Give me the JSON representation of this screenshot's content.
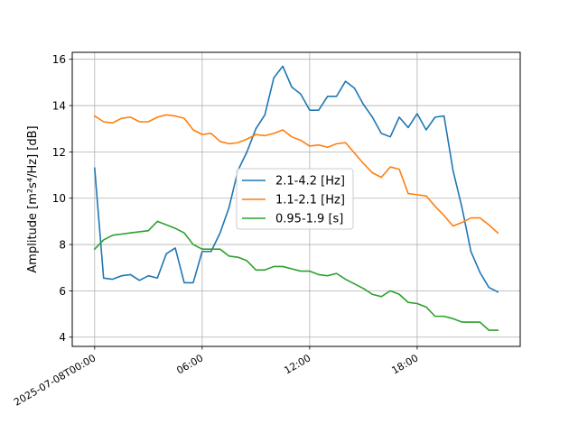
{
  "chart_data": {
    "type": "line",
    "x_start": "2025-07-08T00:00",
    "x_step_minutes": 30,
    "x_ticks": [
      {
        "at": "2025-07-08T00:00",
        "label": "2025-07-08T00:00"
      },
      {
        "at": "2025-07-08T06:00",
        "label": "06:00"
      },
      {
        "at": "2025-07-08T12:00",
        "label": "12:00"
      },
      {
        "at": "2025-07-08T18:00",
        "label": "18:00"
      }
    ],
    "xlim": [
      "2025-07-07T22:45",
      "2025-07-08T23:45"
    ],
    "ylim": [
      3.6,
      16.3
    ],
    "y_ticks": [
      4,
      6,
      8,
      10,
      12,
      14,
      16
    ],
    "ylabel": "Amplitude [m²s⁴/Hz] [dB]",
    "grid": true,
    "legend_position": "center",
    "series": [
      {
        "name": "2.1-4.2 [Hz]",
        "color": "#1f77b4",
        "values": [
          11.3,
          6.55,
          6.5,
          6.65,
          6.7,
          6.45,
          6.65,
          6.55,
          7.6,
          7.85,
          6.35,
          6.35,
          7.7,
          7.7,
          8.5,
          9.6,
          11.2,
          12.0,
          13.0,
          13.6,
          15.2,
          15.7,
          14.8,
          14.5,
          13.8,
          13.8,
          14.4,
          14.4,
          15.05,
          14.75,
          14.05,
          13.5,
          12.8,
          12.65,
          13.5,
          13.05,
          13.65,
          12.95,
          13.5,
          13.55,
          11.2,
          9.6,
          7.7,
          6.8,
          6.15,
          5.95
        ]
      },
      {
        "name": "1.1-2.1 [Hz]",
        "color": "#ff7f0e",
        "values": [
          13.55,
          13.3,
          13.25,
          13.45,
          13.5,
          13.3,
          13.3,
          13.5,
          13.6,
          13.55,
          13.45,
          12.95,
          12.75,
          12.8,
          12.45,
          12.35,
          12.4,
          12.55,
          12.75,
          12.7,
          12.8,
          12.95,
          12.65,
          12.5,
          12.25,
          12.3,
          12.2,
          12.35,
          12.4,
          11.95,
          11.5,
          11.1,
          10.9,
          11.35,
          11.25,
          10.2,
          10.15,
          10.1,
          9.65,
          9.25,
          8.8,
          8.95,
          9.15,
          9.15,
          8.85,
          8.5
        ]
      },
      {
        "name": "0.95-1.9 [s]",
        "color": "#2ca02c",
        "values": [
          7.8,
          8.2,
          8.4,
          8.45,
          8.5,
          8.55,
          8.6,
          9.0,
          8.85,
          8.7,
          8.5,
          8.0,
          7.8,
          7.8,
          7.8,
          7.5,
          7.45,
          7.3,
          6.9,
          6.9,
          7.05,
          7.05,
          6.95,
          6.85,
          6.85,
          6.7,
          6.65,
          6.75,
          6.5,
          6.3,
          6.1,
          5.85,
          5.75,
          6.0,
          5.85,
          5.5,
          5.45,
          5.3,
          4.9,
          4.9,
          4.8,
          4.65,
          4.65,
          4.65,
          4.3,
          4.3
        ]
      }
    ]
  }
}
